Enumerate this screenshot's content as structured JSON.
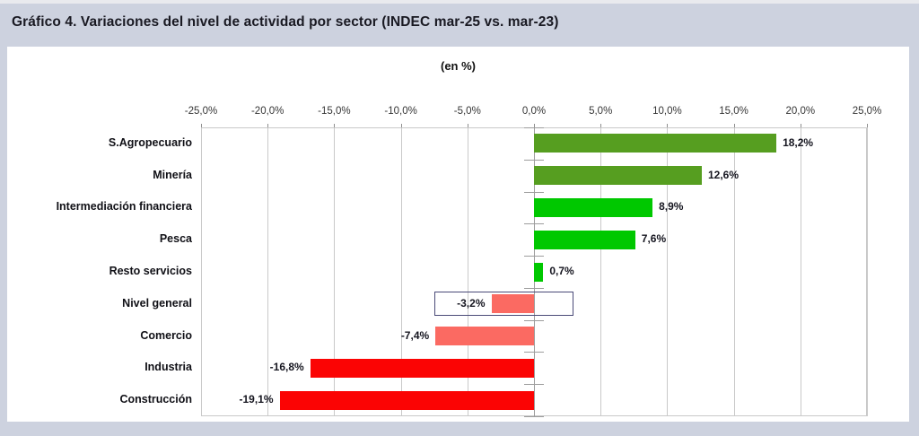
{
  "header": {
    "title": "Gráfico 4. Variaciones del nivel de actividad por sector (INDEC mar-25 vs. mar-23)"
  },
  "chart": {
    "subtitle": "(en %)"
  },
  "colors": {
    "page_bg": "#CDD2DF",
    "panel_bg": "#FFFFFF",
    "grid": "#C9C9C9",
    "axis": "#9D9D9D",
    "title_text": "#191922",
    "label_text": "#15151F",
    "dark_green": "#569E20",
    "bright_green": "#00C800",
    "pink": "#FB6A62",
    "red": "#FB0404",
    "highlight_border": "#4A4A78"
  },
  "chart_data": {
    "type": "bar",
    "orientation": "horizontal",
    "title": "Gráfico 4. Variaciones del nivel de actividad por sector (INDEC mar-25 vs. mar-23)",
    "subtitle": "(en %)",
    "categories": [
      "S.Agropecuario",
      "Minería",
      "Intermediación financiera",
      "Pesca",
      "Resto servicios",
      "Nivel general",
      "Comercio",
      "Industria",
      "Construcción"
    ],
    "values": [
      18.2,
      12.6,
      8.9,
      7.6,
      0.7,
      -3.2,
      -7.4,
      -16.8,
      -19.1
    ],
    "value_labels": [
      "18,2%",
      "12,6%",
      "8,9%",
      "7,6%",
      "0,7%",
      "-3,2%",
      "-7,4%",
      "-16,8%",
      "-19,1%"
    ],
    "bar_colors": [
      "#569E20",
      "#569E20",
      "#00C800",
      "#00C800",
      "#00C800",
      "#FB6A62",
      "#FB6A62",
      "#FB0404",
      "#FB0404"
    ],
    "xlim": [
      -25,
      25
    ],
    "x_tick_step": 5,
    "x_tick_labels": [
      "-25,0%",
      "-20,0%",
      "-15,0%",
      "-10,0%",
      "-5,0%",
      "0,0%",
      "5,0%",
      "10,0%",
      "15,0%",
      "20,0%",
      "25,0%"
    ],
    "xlabel": "",
    "ylabel": "",
    "grid": "vertical gridlines on",
    "legend": "none",
    "highlight_box": {
      "category": "Nivel general",
      "x_from": -7.45,
      "x_to": 2.95,
      "border_color": "#4A4A78"
    }
  }
}
